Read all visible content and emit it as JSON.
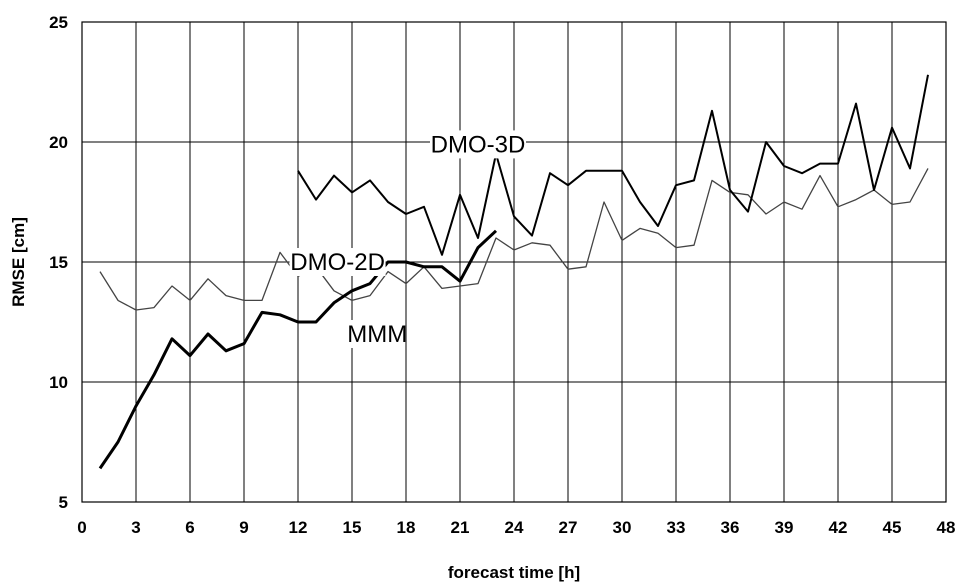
{
  "chart_data": {
    "type": "line",
    "xlabel": "forecast time [h]",
    "ylabel": "RMSE [cm]",
    "xlim": [
      0,
      48
    ],
    "ylim": [
      5,
      25
    ],
    "xticks": [
      "0",
      "3",
      "6",
      "9",
      "12",
      "15",
      "18",
      "21",
      "24",
      "27",
      "30",
      "33",
      "36",
      "39",
      "42",
      "45",
      "48"
    ],
    "yticks": [
      "5",
      "10",
      "15",
      "20",
      "25"
    ],
    "grid": true,
    "series": [
      {
        "name": "DMO-2D",
        "color": "#444444",
        "x": [
          1,
          2,
          3,
          4,
          5,
          6,
          7,
          8,
          9,
          10,
          11,
          12,
          13,
          14,
          15,
          16,
          17,
          18,
          19,
          20,
          21,
          22,
          23,
          24,
          25,
          26,
          27,
          28,
          29,
          30,
          31,
          32,
          33,
          34,
          35,
          36,
          37,
          38,
          39,
          40,
          41,
          42,
          43,
          44,
          45,
          46,
          47
        ],
        "y": [
          14.6,
          13.4,
          13.0,
          13.1,
          14.0,
          13.4,
          14.3,
          13.6,
          13.4,
          13.4,
          15.4,
          14.4,
          14.8,
          13.8,
          13.4,
          13.6,
          14.6,
          14.1,
          14.8,
          13.9,
          14.0,
          14.1,
          16.0,
          15.5,
          15.8,
          15.7,
          14.7,
          14.8,
          17.5,
          15.9,
          16.4,
          16.2,
          15.6,
          15.7,
          18.4,
          17.9,
          17.8,
          17.0,
          17.5,
          17.2,
          18.6,
          17.3,
          17.6,
          18.0,
          17.4,
          17.5,
          18.9
        ]
      },
      {
        "name": "DMO-3D",
        "color": "#000000",
        "x": [
          12,
          13,
          14,
          15,
          16,
          17,
          18,
          19,
          20,
          21,
          22,
          23,
          24,
          25,
          26,
          27,
          28,
          29,
          30,
          31,
          32,
          33,
          34,
          35,
          36,
          37,
          38,
          39,
          40,
          41,
          42,
          43,
          44,
          45,
          46,
          47
        ],
        "y": [
          18.8,
          17.6,
          18.6,
          17.9,
          18.4,
          17.5,
          17.0,
          17.3,
          15.3,
          17.8,
          16.0,
          19.5,
          16.9,
          16.1,
          18.7,
          18.2,
          18.8,
          18.8,
          18.8,
          17.5,
          16.5,
          18.2,
          18.4,
          21.3,
          18.0,
          17.1,
          20.0,
          19.0,
          18.7,
          19.1,
          19.1,
          21.6,
          18.0,
          20.6,
          18.9,
          22.8
        ]
      },
      {
        "name": "MMM",
        "color": "#000000",
        "x": [
          1,
          2,
          3,
          4,
          5,
          6,
          7,
          8,
          9,
          10,
          11,
          12,
          13,
          14,
          15,
          16,
          17,
          18,
          19,
          20,
          21,
          22,
          23
        ],
        "y": [
          6.4,
          7.5,
          9.0,
          10.3,
          11.8,
          11.1,
          12.0,
          11.3,
          11.6,
          12.9,
          12.8,
          12.5,
          12.5,
          13.3,
          13.8,
          14.1,
          15.0,
          15.0,
          14.8,
          14.8,
          14.2,
          15.6,
          16.3
        ]
      }
    ]
  }
}
